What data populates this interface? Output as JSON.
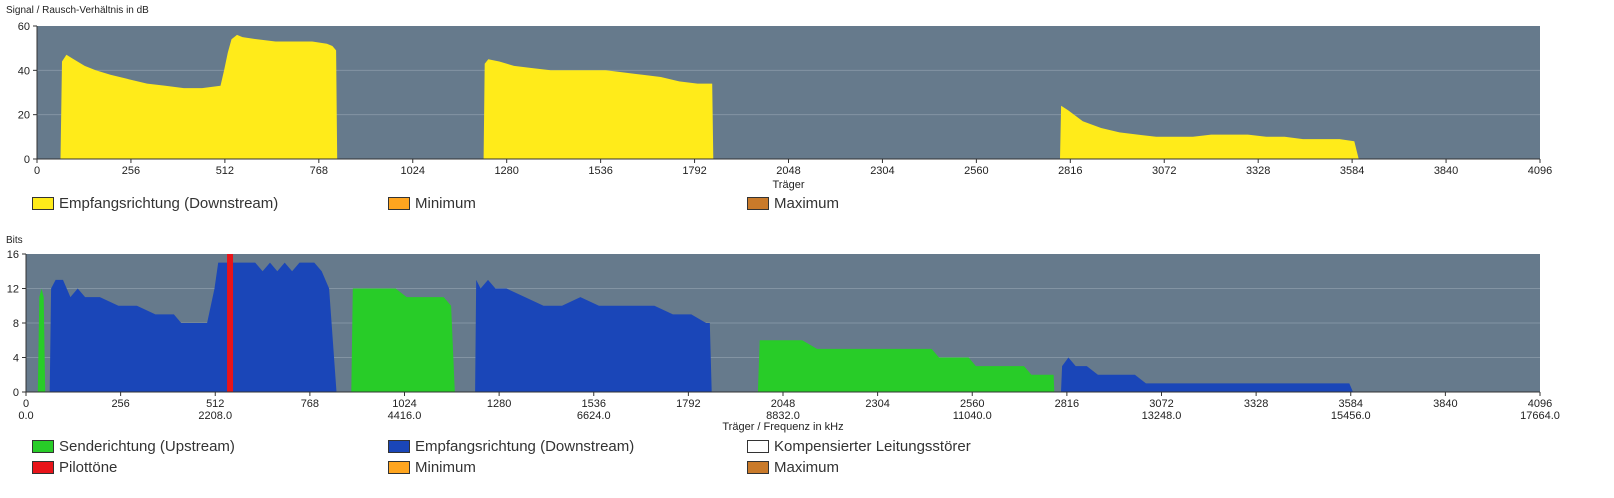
{
  "chart_data": [
    {
      "type": "area",
      "ylabel": "Signal / Rausch-Verhältnis in dB",
      "xlabel": "Träger",
      "xlim": [
        0,
        4096
      ],
      "ylim": [
        0,
        60
      ],
      "x_ticks": [
        "0",
        "256",
        "512",
        "768",
        "1024",
        "1280",
        "1536",
        "1792",
        "2048",
        "2304",
        "2560",
        "2816",
        "3072",
        "3328",
        "3584",
        "3840",
        "4096"
      ],
      "y_ticks": [
        "0",
        "20",
        "40",
        "60"
      ],
      "grid": true,
      "series": [
        {
          "name": "Empfangsrichtung (Downstream)",
          "color": "#ffeb1a",
          "segments": [
            [
              [
                64,
                0
              ],
              [
                68,
                44
              ],
              [
                80,
                47
              ],
              [
                100,
                45
              ],
              [
                130,
                42
              ],
              [
                160,
                40
              ],
              [
                200,
                38
              ],
              [
                250,
                36
              ],
              [
                300,
                34
              ],
              [
                350,
                33
              ],
              [
                400,
                32
              ],
              [
                450,
                32
              ],
              [
                500,
                33
              ],
              [
                510,
                40
              ],
              [
                520,
                48
              ],
              [
                530,
                54
              ],
              [
                545,
                56
              ],
              [
                560,
                55
              ],
              [
                600,
                54
              ],
              [
                650,
                53
              ],
              [
                700,
                53
              ],
              [
                750,
                53
              ],
              [
                790,
                52
              ],
              [
                805,
                51
              ],
              [
                815,
                49
              ],
              [
                818,
                0
              ]
            ],
            [
              [
                1217,
                0
              ],
              [
                1220,
                43
              ],
              [
                1230,
                45
              ],
              [
                1260,
                44
              ],
              [
                1300,
                42
              ],
              [
                1350,
                41
              ],
              [
                1400,
                40
              ],
              [
                1450,
                40
              ],
              [
                1500,
                40
              ],
              [
                1550,
                40
              ],
              [
                1600,
                39
              ],
              [
                1650,
                38
              ],
              [
                1700,
                37
              ],
              [
                1750,
                35
              ],
              [
                1800,
                34
              ],
              [
                1840,
                34
              ],
              [
                1843,
                0
              ]
            ],
            [
              [
                2788,
                0
              ],
              [
                2791,
                24
              ],
              [
                2810,
                22
              ],
              [
                2850,
                17
              ],
              [
                2900,
                14
              ],
              [
                2950,
                12
              ],
              [
                3000,
                11
              ],
              [
                3050,
                10
              ],
              [
                3100,
                10
              ],
              [
                3150,
                10
              ],
              [
                3200,
                11
              ],
              [
                3250,
                11
              ],
              [
                3300,
                11
              ],
              [
                3350,
                10
              ],
              [
                3400,
                10
              ],
              [
                3450,
                9
              ],
              [
                3500,
                9
              ],
              [
                3550,
                9
              ],
              [
                3590,
                8
              ],
              [
                3602,
                0
              ]
            ]
          ]
        }
      ],
      "legend": [
        {
          "label": "Empfangsrichtung (Downstream)",
          "color": "#ffeb1a"
        },
        {
          "label": "Minimum",
          "color": "#ffa51f"
        },
        {
          "label": "Maximum",
          "color": "#c97a2a"
        }
      ]
    },
    {
      "type": "area",
      "ylabel": "Bits",
      "xlabel": "Träger / Frequenz in kHz",
      "xlim": [
        0,
        4096
      ],
      "ylim": [
        0,
        16
      ],
      "x_ticks": [
        "0",
        "256",
        "512",
        "768",
        "1024",
        "1280",
        "1536",
        "1792",
        "2048",
        "2304",
        "2560",
        "2816",
        "3072",
        "3328",
        "3584",
        "3840",
        "4096"
      ],
      "x_ticks_freq": [
        "0.0",
        "2208.0",
        "4416.0",
        "6624.0",
        "8832.0",
        "11040.0",
        "13248.0",
        "15456.0",
        "17664.0"
      ],
      "y_ticks": [
        "0",
        "4",
        "8",
        "12",
        "16"
      ],
      "grid": true,
      "series": [
        {
          "name": "Senderichtung (Upstream)",
          "color": "#28cc28",
          "segments": [
            [
              [
                32,
                0
              ],
              [
                36,
                11
              ],
              [
                42,
                12
              ],
              [
                48,
                11
              ],
              [
                52,
                0
              ]
            ],
            [
              [
                880,
                0
              ],
              [
                884,
                12
              ],
              [
                960,
                12
              ],
              [
                1000,
                12
              ],
              [
                1030,
                11
              ],
              [
                1100,
                11
              ],
              [
                1130,
                11
              ],
              [
                1150,
                10
              ],
              [
                1160,
                0
              ]
            ],
            [
              [
                1980,
                0
              ],
              [
                1985,
                6
              ],
              [
                2000,
                6
              ],
              [
                2050,
                6
              ],
              [
                2100,
                6
              ],
              [
                2140,
                5
              ],
              [
                2200,
                5
              ],
              [
                2300,
                5
              ],
              [
                2400,
                5
              ],
              [
                2450,
                5
              ],
              [
                2470,
                4
              ],
              [
                2500,
                4
              ],
              [
                2550,
                4
              ],
              [
                2570,
                3
              ],
              [
                2600,
                3
              ],
              [
                2650,
                3
              ],
              [
                2700,
                3
              ],
              [
                2720,
                2
              ],
              [
                2780,
                2
              ],
              [
                2782,
                0
              ]
            ]
          ]
        },
        {
          "name": "Empfangsrichtung (Downstream)",
          "color": "#1a46b8",
          "segments": [
            [
              [
                64,
                0
              ],
              [
                68,
                12
              ],
              [
                80,
                13
              ],
              [
                100,
                13
              ],
              [
                120,
                11
              ],
              [
                140,
                12
              ],
              [
                160,
                11
              ],
              [
                200,
                11
              ],
              [
                250,
                10
              ],
              [
                300,
                10
              ],
              [
                350,
                9
              ],
              [
                400,
                9
              ],
              [
                420,
                8
              ],
              [
                440,
                8
              ],
              [
                470,
                8
              ],
              [
                490,
                8
              ],
              [
                510,
                12
              ],
              [
                520,
                15
              ],
              [
                560,
                15
              ],
              [
                620,
                15
              ],
              [
                640,
                14
              ],
              [
                660,
                15
              ],
              [
                680,
                14
              ],
              [
                700,
                15
              ],
              [
                720,
                14
              ],
              [
                740,
                15
              ],
              [
                780,
                15
              ],
              [
                800,
                14
              ],
              [
                820,
                12
              ],
              [
                840,
                0
              ]
            ],
            [
              [
                1215,
                0
              ],
              [
                1218,
                13
              ],
              [
                1230,
                12
              ],
              [
                1250,
                13
              ],
              [
                1270,
                12
              ],
              [
                1300,
                12
              ],
              [
                1350,
                11
              ],
              [
                1400,
                10
              ],
              [
                1450,
                10
              ],
              [
                1500,
                11
              ],
              [
                1550,
                10
              ],
              [
                1600,
                10
              ],
              [
                1650,
                10
              ],
              [
                1700,
                10
              ],
              [
                1750,
                9
              ],
              [
                1800,
                9
              ],
              [
                1840,
                8
              ],
              [
                1850,
                8
              ],
              [
                1855,
                0
              ]
            ],
            [
              [
                2800,
                0
              ],
              [
                2803,
                3
              ],
              [
                2820,
                4
              ],
              [
                2840,
                3
              ],
              [
                2870,
                3
              ],
              [
                2900,
                2
              ],
              [
                2950,
                2
              ],
              [
                3000,
                2
              ],
              [
                3030,
                1
              ],
              [
                3100,
                1
              ],
              [
                3200,
                1
              ],
              [
                3300,
                1
              ],
              [
                3400,
                1
              ],
              [
                3500,
                1
              ],
              [
                3580,
                1
              ],
              [
                3590,
                0
              ]
            ]
          ]
        },
        {
          "name": "Pilottöne",
          "color": "#e8141a",
          "markers": [
            [
              552,
              16
            ]
          ]
        }
      ],
      "legend": [
        {
          "label": "Senderichtung (Upstream)",
          "color": "#28cc28"
        },
        {
          "label": "Empfangsrichtung (Downstream)",
          "color": "#1a46b8"
        },
        {
          "label": "Kompensierter Leitungsstörer",
          "color": "#ffffff"
        },
        {
          "label": "Pilottöne",
          "color": "#e8141a"
        },
        {
          "label": "Minimum",
          "color": "#ffa51f"
        },
        {
          "label": "Maximum",
          "color": "#c97a2a"
        }
      ]
    }
  ],
  "colors": {
    "plot_background": "#667a8c",
    "gridline": "#8394a3"
  }
}
